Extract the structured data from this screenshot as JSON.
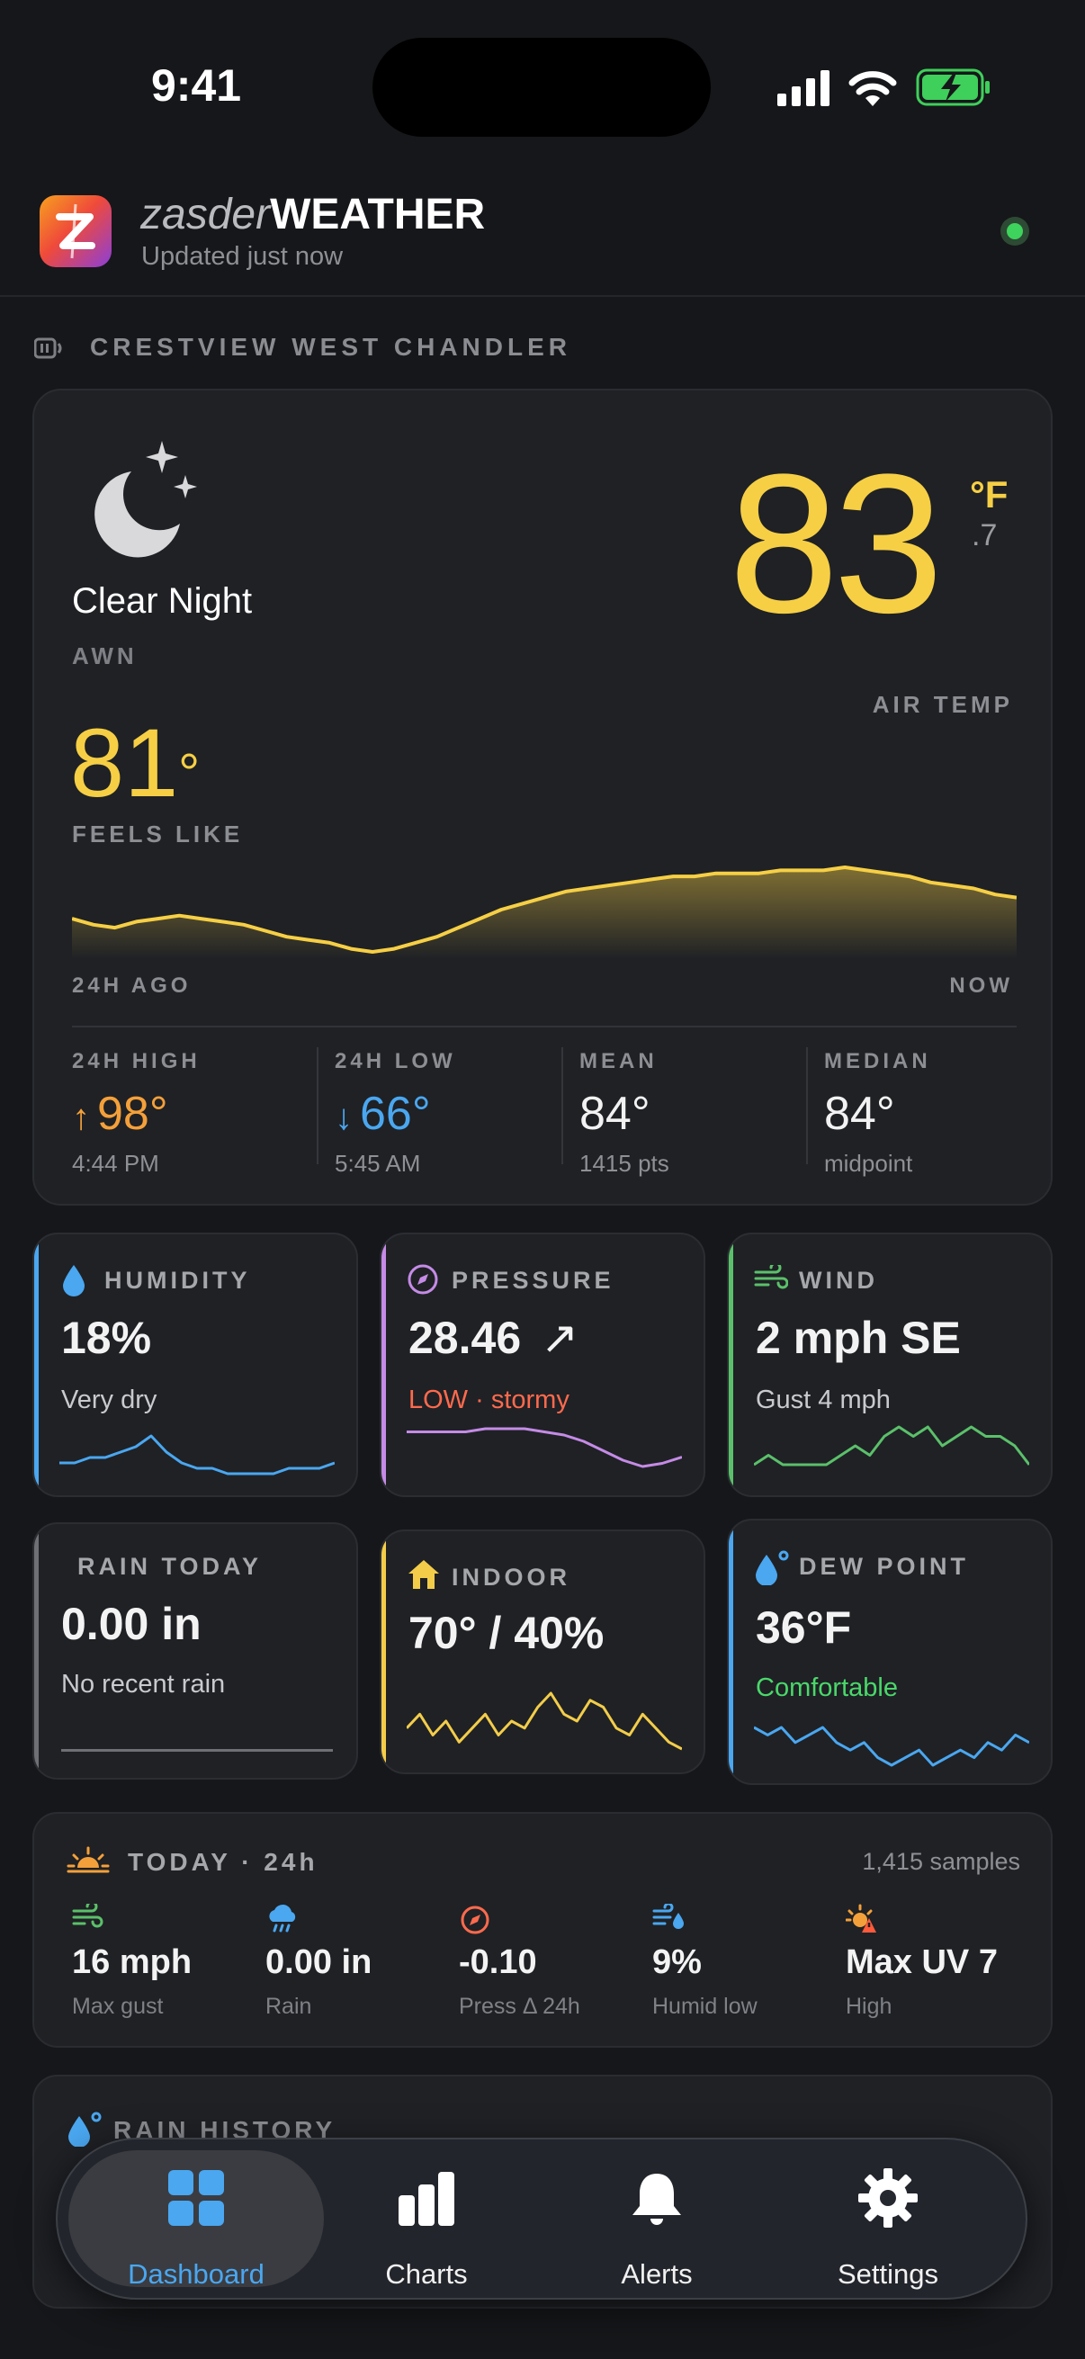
{
  "status_bar": {
    "time": "9:41"
  },
  "header": {
    "brand_light": "zasder",
    "brand_bold": "WEATHER",
    "updated": "Updated just now"
  },
  "station": {
    "name": "CRESTVIEW WEST CHANDLER"
  },
  "current": {
    "condition": "Clear Night",
    "source": "AWN",
    "temp": "83",
    "temp_unit": "°F",
    "temp_decimal": ".7",
    "temp_label": "AIR TEMP",
    "feels_like": "81",
    "feels_deg": "°",
    "feels_label": "FEELS LIKE",
    "spark_left": "24H AGO",
    "spark_right": "NOW",
    "temp_24h_trend": [
      67,
      65,
      64,
      66,
      67,
      68,
      67,
      66,
      65,
      63,
      61,
      60,
      59,
      57,
      56,
      57,
      59,
      61,
      64,
      67,
      70,
      72,
      74,
      76,
      77,
      78,
      79,
      80,
      81,
      81,
      82,
      82,
      82,
      83,
      83,
      83,
      84,
      83,
      82,
      81,
      79,
      78,
      77,
      75,
      74
    ]
  },
  "stats": [
    {
      "label": "24H HIGH",
      "value": "98°",
      "arrow": "↑",
      "sub": "4:44 PM",
      "color": "#f4a03a"
    },
    {
      "label": "24H LOW",
      "value": "66°",
      "arrow": "↓",
      "sub": "5:45 AM",
      "color": "#4aa7f0"
    },
    {
      "label": "MEAN",
      "value": "84°",
      "arrow": "",
      "sub": "1415 pts",
      "color": "#f2f2f2"
    },
    {
      "label": "MEDIAN",
      "value": "84°",
      "arrow": "",
      "sub": "midpoint",
      "color": "#f2f2f2"
    }
  ],
  "tiles": {
    "humidity": {
      "title": "HUMIDITY",
      "value": "18%",
      "sub": "Very dry",
      "accent": "#4aa7f0",
      "trend": [
        18,
        18,
        19,
        19,
        20,
        21,
        23,
        20,
        18,
        17,
        17,
        16,
        16,
        16,
        16,
        17,
        17,
        17,
        18
      ]
    },
    "pressure": {
      "title": "PRESSURE",
      "value": "28.46",
      "arrow": "↗",
      "sub": "LOW · stormy",
      "accent": "#c58be6",
      "sub_color": "#ff6a4d",
      "trend": [
        29,
        29,
        29,
        29,
        30,
        30,
        30,
        29,
        28,
        26,
        23,
        20,
        18,
        19,
        21
      ]
    },
    "wind": {
      "title": "WIND",
      "value": "2 mph SE",
      "sub": "Gust 4 mph",
      "accent": "#5bc06a",
      "trend": [
        1,
        2,
        1,
        1,
        1,
        1,
        2,
        3,
        2,
        4,
        5,
        4,
        5,
        3,
        4,
        5,
        4,
        4,
        3,
        1
      ]
    },
    "rain": {
      "title": "RAIN TODAY",
      "value": "0.00 in",
      "sub": "No recent rain",
      "accent": "#6e7075"
    },
    "indoor": {
      "title": "INDOOR",
      "value": "70° / 40%",
      "accent": "#f3cd4a",
      "trend": [
        5,
        7,
        4,
        6,
        3,
        5,
        7,
        4,
        6,
        5,
        8,
        10,
        7,
        6,
        9,
        8,
        5,
        4,
        7,
        5,
        3,
        2
      ]
    },
    "dew": {
      "title": "DEW POINT",
      "value": "36°F",
      "sub": "Comfortable",
      "accent": "#4aa7f0",
      "sub_color": "#4ad86a",
      "trend": [
        8,
        7,
        8,
        6,
        7,
        8,
        6,
        5,
        6,
        4,
        3,
        4,
        5,
        3,
        4,
        5,
        4,
        6,
        5,
        7,
        6
      ]
    }
  },
  "today": {
    "title": "TODAY · 24h",
    "samples": "1,415 samples",
    "items": [
      {
        "icon": "wind-icon",
        "value": "16 mph",
        "label": "Max gust"
      },
      {
        "icon": "rain-cloud-icon",
        "value": "0.00 in",
        "label": "Rain"
      },
      {
        "icon": "gauge-icon",
        "value": "-0.10",
        "label": "Press Δ 24h"
      },
      {
        "icon": "humidity-wind-icon",
        "value": "9%",
        "label": "Humid low"
      },
      {
        "icon": "uv-sun-icon",
        "value": "Max UV 7",
        "label": "High"
      }
    ]
  },
  "rain_history": {
    "title": "RAIN HISTORY"
  },
  "nav": [
    {
      "label": "Dashboard",
      "icon": "grid-icon"
    },
    {
      "label": "Charts",
      "icon": "bar-chart-icon"
    },
    {
      "label": "Alerts",
      "icon": "bell-icon"
    },
    {
      "label": "Settings",
      "icon": "gear-icon"
    }
  ]
}
